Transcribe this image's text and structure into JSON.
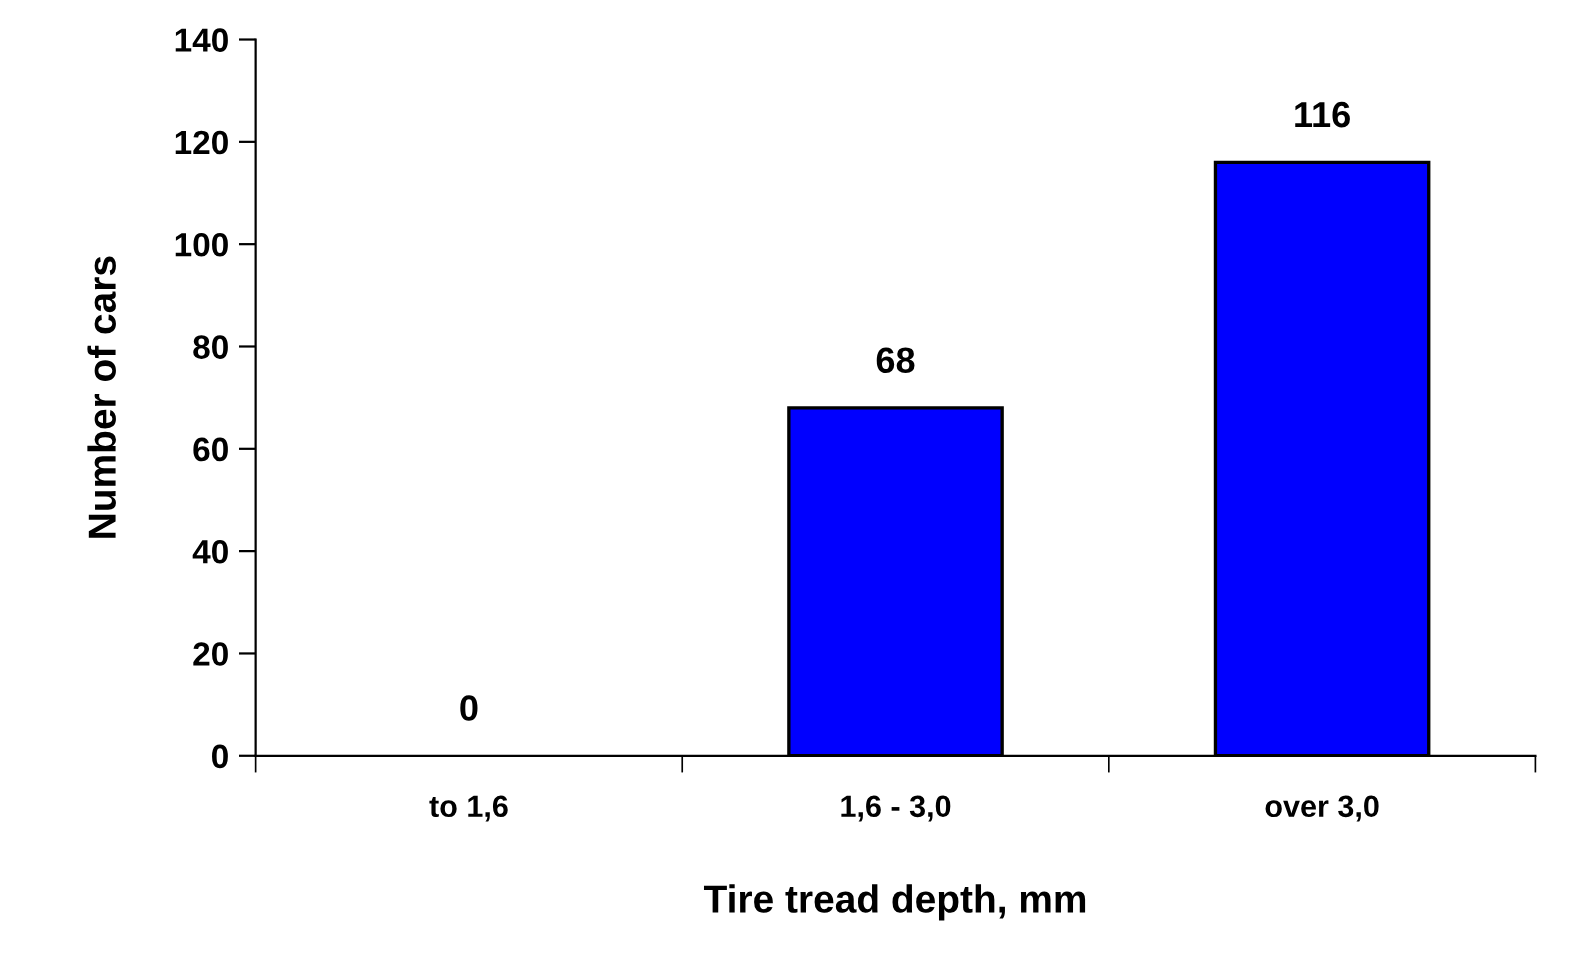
{
  "chart_data": {
    "type": "bar",
    "xlabel": "Tire tread depth, mm",
    "ylabel": "Number of cars",
    "categories": [
      "to 1,6",
      "1,6 - 3,0",
      "over 3,0"
    ],
    "values": [
      0,
      68,
      116
    ],
    "color": "#0000ff",
    "ylim": [
      0,
      140
    ],
    "yticks": [
      0,
      20,
      40,
      60,
      80,
      100,
      120,
      140
    ],
    "grid": false,
    "data_labels": true
  }
}
